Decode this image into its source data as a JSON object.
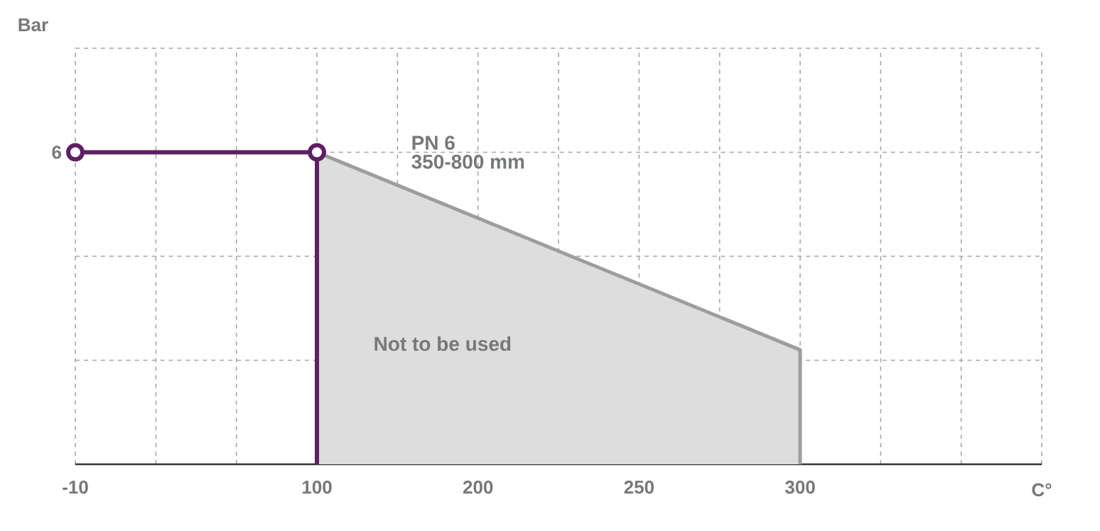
{
  "chart_data": {
    "type": "line",
    "categories": [
      "-10",
      null,
      null,
      "100",
      null,
      "200",
      null,
      "250",
      null,
      "300",
      null,
      null,
      null
    ],
    "series": [
      {
        "type": "area",
        "color": "#dddddd",
        "values": [
          null,
          null,
          null,
          6,
          null,
          null,
          null,
          null,
          null,
          2.2,
          null,
          null,
          null
        ]
      },
      {
        "color": "#5e1f63",
        "values": [
          6,
          null,
          null,
          6,
          null,
          null,
          null,
          null,
          null,
          null,
          null,
          null,
          null
        ],
        "marker": "circle"
      }
    ],
    "ylim": [
      0,
      8
    ],
    "yticks": [
      {
        "value": 0,
        "label": null
      },
      {
        "value": 2,
        "label": null
      },
      {
        "value": 4,
        "label": null
      },
      6,
      {
        "value": 8,
        "label": null
      }
    ],
    "ylabel": "Bar",
    "xlabel": "C°",
    "ref_lines": [
      {
        "axis": "x",
        "value": "100",
        "color": "#5e1f63"
      }
    ],
    "annotations": [
      "PN 6",
      "350-800 mm",
      "Not to be used"
    ],
    "grid": true
  }
}
